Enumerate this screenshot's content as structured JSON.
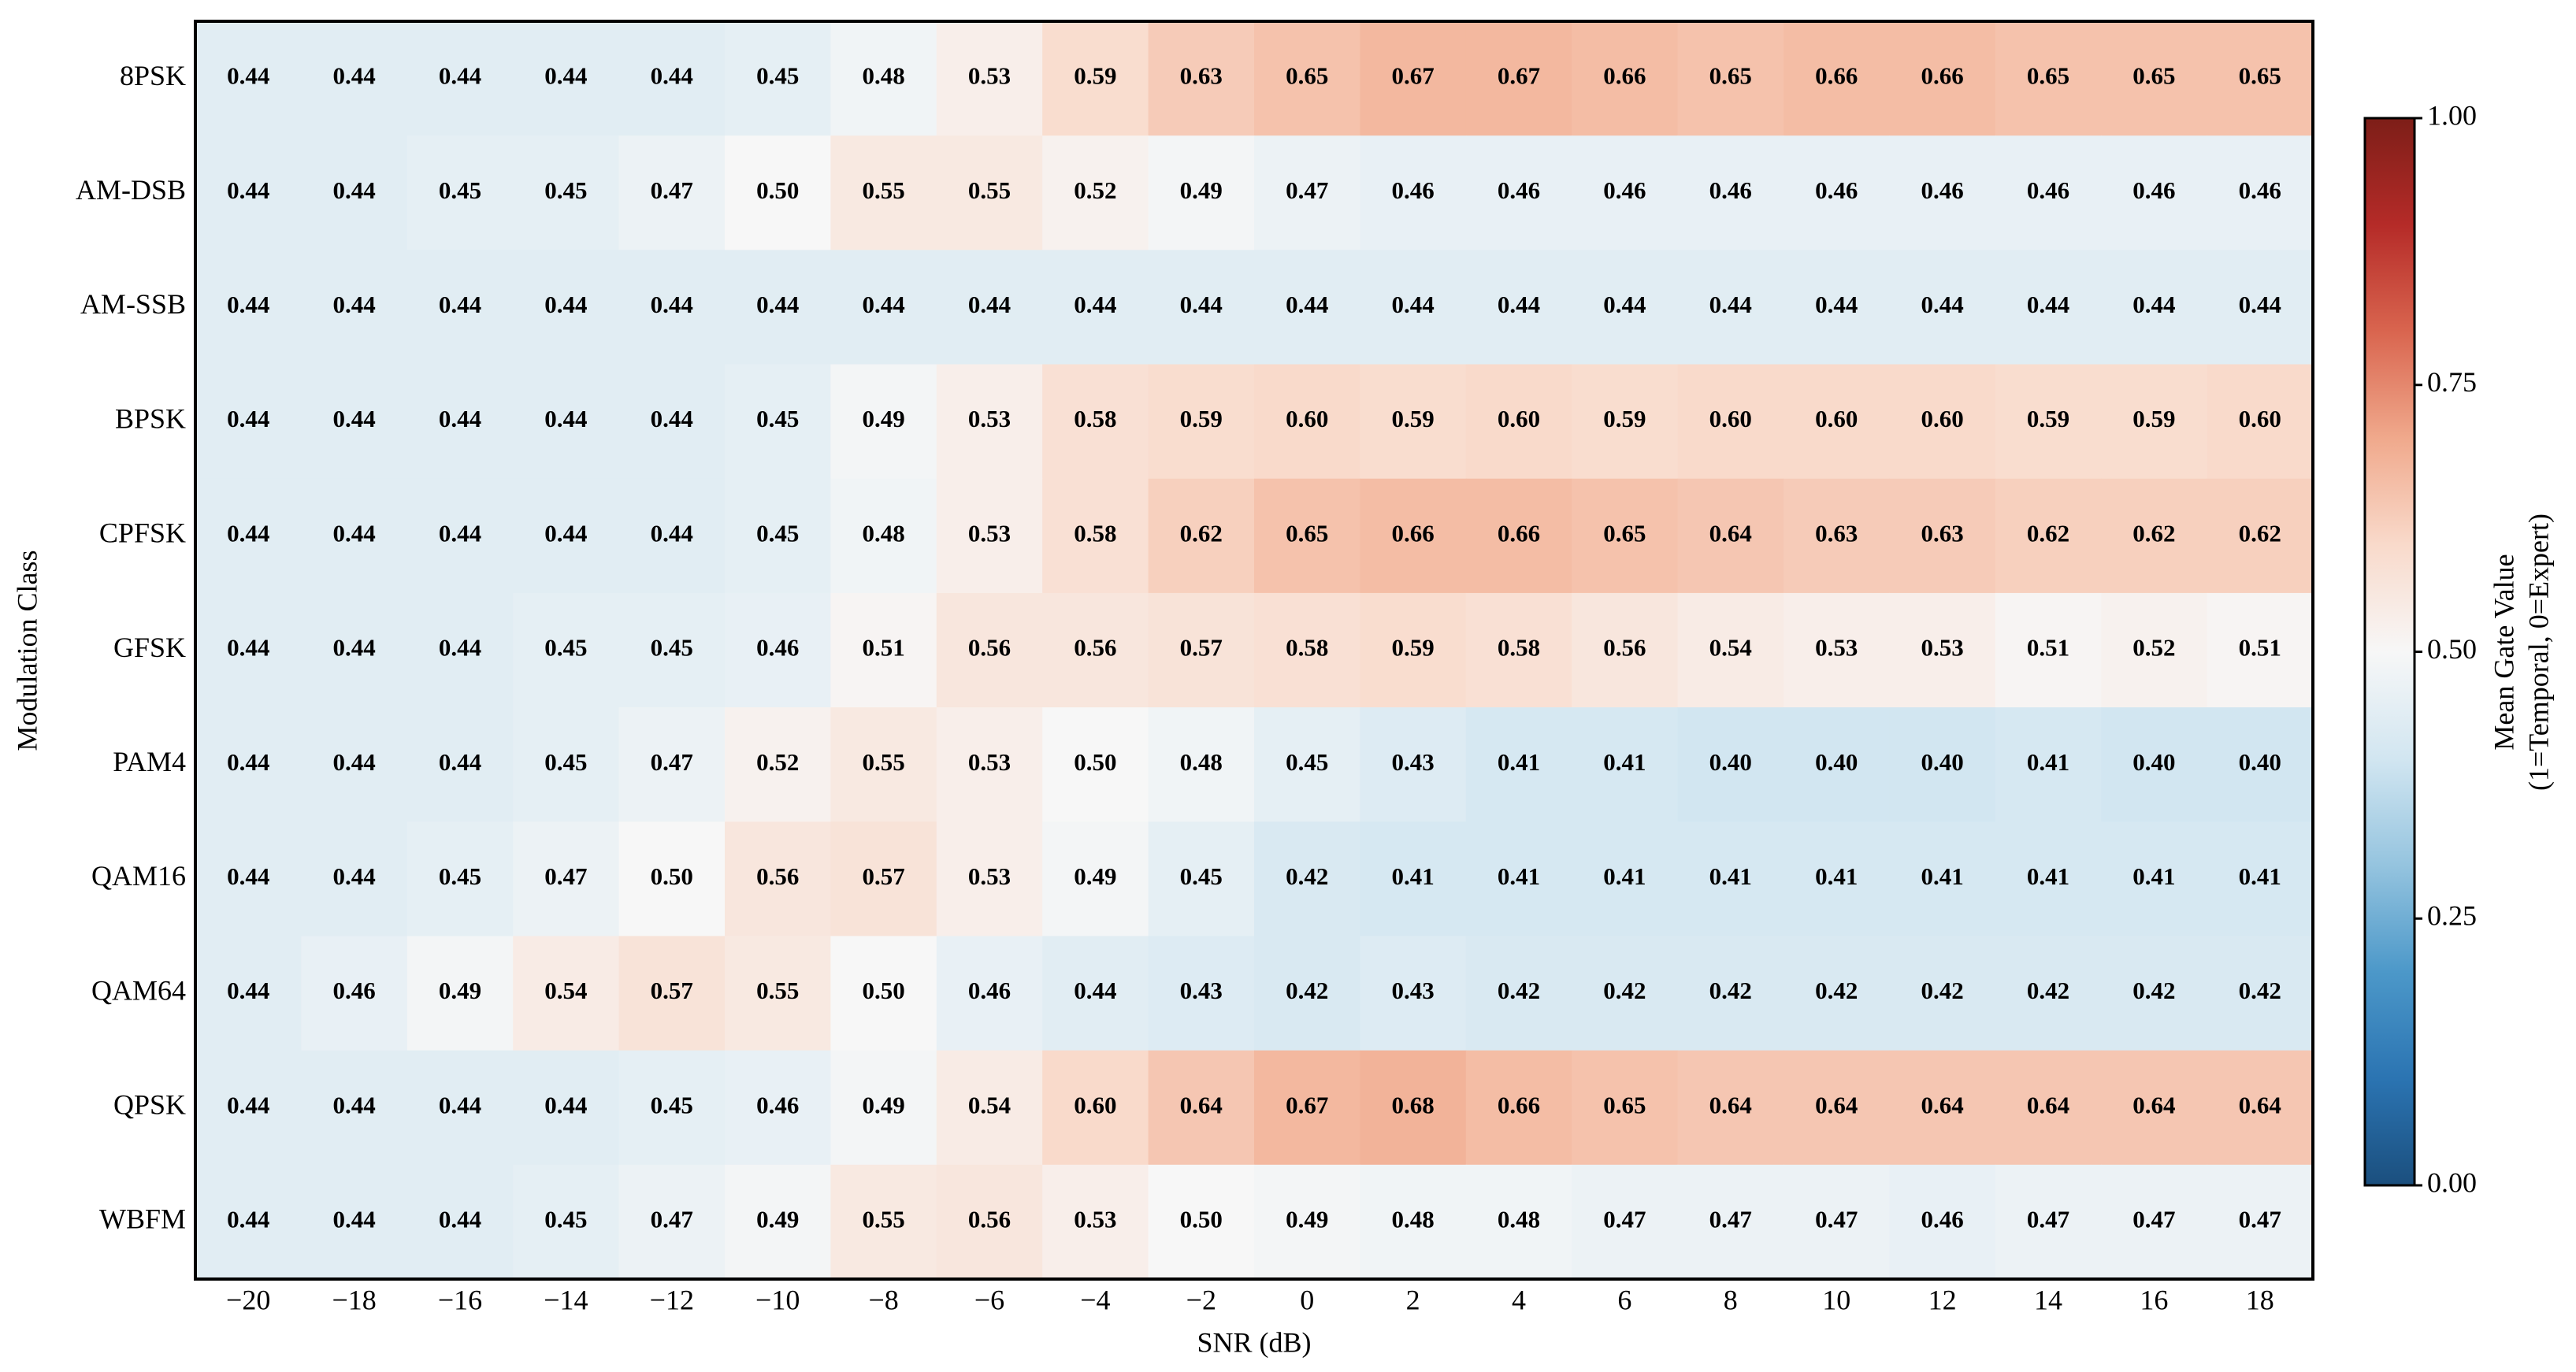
{
  "chart_data": {
    "type": "heatmap",
    "xlabel": "SNR (dB)",
    "ylabel": "Modulation Class",
    "categories": [
      "−20",
      "−18",
      "−16",
      "−14",
      "−12",
      "−10",
      "−8",
      "−6",
      "−4",
      "−2",
      "0",
      "2",
      "4",
      "6",
      "8",
      "10",
      "12",
      "14",
      "16",
      "18"
    ],
    "y_categories": [
      "8PSK",
      "AM-DSB",
      "AM-SSB",
      "BPSK",
      "CPFSK",
      "GFSK",
      "PAM4",
      "QAM16",
      "QAM64",
      "QPSK",
      "WBFM"
    ],
    "values": [
      [
        0.44,
        0.44,
        0.44,
        0.44,
        0.44,
        0.45,
        0.48,
        0.53,
        0.59,
        0.63,
        0.65,
        0.67,
        0.67,
        0.66,
        0.65,
        0.66,
        0.66,
        0.65,
        0.65,
        0.65
      ],
      [
        0.44,
        0.44,
        0.45,
        0.45,
        0.47,
        0.5,
        0.55,
        0.55,
        0.52,
        0.49,
        0.47,
        0.46,
        0.46,
        0.46,
        0.46,
        0.46,
        0.46,
        0.46,
        0.46,
        0.46
      ],
      [
        0.44,
        0.44,
        0.44,
        0.44,
        0.44,
        0.44,
        0.44,
        0.44,
        0.44,
        0.44,
        0.44,
        0.44,
        0.44,
        0.44,
        0.44,
        0.44,
        0.44,
        0.44,
        0.44,
        0.44
      ],
      [
        0.44,
        0.44,
        0.44,
        0.44,
        0.44,
        0.45,
        0.49,
        0.53,
        0.58,
        0.59,
        0.6,
        0.59,
        0.6,
        0.59,
        0.6,
        0.6,
        0.6,
        0.59,
        0.59,
        0.6
      ],
      [
        0.44,
        0.44,
        0.44,
        0.44,
        0.44,
        0.45,
        0.48,
        0.53,
        0.58,
        0.62,
        0.65,
        0.66,
        0.66,
        0.65,
        0.64,
        0.63,
        0.63,
        0.62,
        0.62,
        0.62
      ],
      [
        0.44,
        0.44,
        0.44,
        0.45,
        0.45,
        0.46,
        0.51,
        0.56,
        0.56,
        0.57,
        0.58,
        0.59,
        0.58,
        0.56,
        0.54,
        0.53,
        0.53,
        0.51,
        0.52,
        0.51
      ],
      [
        0.44,
        0.44,
        0.44,
        0.45,
        0.47,
        0.52,
        0.55,
        0.53,
        0.5,
        0.48,
        0.45,
        0.43,
        0.41,
        0.41,
        0.4,
        0.4,
        0.4,
        0.41,
        0.4,
        0.4
      ],
      [
        0.44,
        0.44,
        0.45,
        0.47,
        0.5,
        0.56,
        0.57,
        0.53,
        0.49,
        0.45,
        0.42,
        0.41,
        0.41,
        0.41,
        0.41,
        0.41,
        0.41,
        0.41,
        0.41,
        0.41
      ],
      [
        0.44,
        0.46,
        0.49,
        0.54,
        0.57,
        0.55,
        0.5,
        0.46,
        0.44,
        0.43,
        0.42,
        0.43,
        0.42,
        0.42,
        0.42,
        0.42,
        0.42,
        0.42,
        0.42,
        0.42
      ],
      [
        0.44,
        0.44,
        0.44,
        0.44,
        0.45,
        0.46,
        0.49,
        0.54,
        0.6,
        0.64,
        0.67,
        0.68,
        0.66,
        0.65,
        0.64,
        0.64,
        0.64,
        0.64,
        0.64,
        0.64
      ],
      [
        0.44,
        0.44,
        0.44,
        0.45,
        0.47,
        0.49,
        0.55,
        0.56,
        0.53,
        0.5,
        0.49,
        0.48,
        0.48,
        0.47,
        0.47,
        0.47,
        0.46,
        0.47,
        0.47,
        0.47
      ]
    ],
    "value_labels": [
      [
        "0.44",
        "0.44",
        "0.44",
        "0.44",
        "0.44",
        "0.45",
        "0.48",
        "0.53",
        "0.59",
        "0.63",
        "0.65",
        "0.67",
        "0.67",
        "0.66",
        "0.65",
        "0.66",
        "0.66",
        "0.65",
        "0.65",
        "0.65"
      ],
      [
        "0.44",
        "0.44",
        "0.45",
        "0.45",
        "0.47",
        "0.50",
        "0.55",
        "0.55",
        "0.52",
        "0.49",
        "0.47",
        "0.46",
        "0.46",
        "0.46",
        "0.46",
        "0.46",
        "0.46",
        "0.46",
        "0.46",
        "0.46"
      ],
      [
        "0.44",
        "0.44",
        "0.44",
        "0.44",
        "0.44",
        "0.44",
        "0.44",
        "0.44",
        "0.44",
        "0.44",
        "0.44",
        "0.44",
        "0.44",
        "0.44",
        "0.44",
        "0.44",
        "0.44",
        "0.44",
        "0.44",
        "0.44"
      ],
      [
        "0.44",
        "0.44",
        "0.44",
        "0.44",
        "0.44",
        "0.45",
        "0.49",
        "0.53",
        "0.58",
        "0.59",
        "0.60",
        "0.59",
        "0.60",
        "0.59",
        "0.60",
        "0.60",
        "0.60",
        "0.59",
        "0.59",
        "0.60"
      ],
      [
        "0.44",
        "0.44",
        "0.44",
        "0.44",
        "0.44",
        "0.45",
        "0.48",
        "0.53",
        "0.58",
        "0.62",
        "0.65",
        "0.66",
        "0.66",
        "0.65",
        "0.64",
        "0.63",
        "0.63",
        "0.62",
        "0.62",
        "0.62"
      ],
      [
        "0.44",
        "0.44",
        "0.44",
        "0.45",
        "0.45",
        "0.46",
        "0.51",
        "0.56",
        "0.56",
        "0.57",
        "0.58",
        "0.59",
        "0.58",
        "0.56",
        "0.54",
        "0.53",
        "0.53",
        "0.51",
        "0.52",
        "0.51"
      ],
      [
        "0.44",
        "0.44",
        "0.44",
        "0.45",
        "0.47",
        "0.52",
        "0.55",
        "0.53",
        "0.50",
        "0.48",
        "0.45",
        "0.43",
        "0.41",
        "0.41",
        "0.40",
        "0.40",
        "0.40",
        "0.41",
        "0.40",
        "0.40"
      ],
      [
        "0.44",
        "0.44",
        "0.45",
        "0.47",
        "0.50",
        "0.56",
        "0.57",
        "0.53",
        "0.49",
        "0.45",
        "0.42",
        "0.41",
        "0.41",
        "0.41",
        "0.41",
        "0.41",
        "0.41",
        "0.41",
        "0.41",
        "0.41"
      ],
      [
        "0.44",
        "0.46",
        "0.49",
        "0.54",
        "0.57",
        "0.55",
        "0.50",
        "0.46",
        "0.44",
        "0.43",
        "0.42",
        "0.43",
        "0.42",
        "0.42",
        "0.42",
        "0.42",
        "0.42",
        "0.42",
        "0.42",
        "0.42"
      ],
      [
        "0.44",
        "0.44",
        "0.44",
        "0.44",
        "0.45",
        "0.46",
        "0.49",
        "0.54",
        "0.60",
        "0.64",
        "0.67",
        "0.68",
        "0.66",
        "0.65",
        "0.64",
        "0.64",
        "0.64",
        "0.64",
        "0.64",
        "0.64"
      ],
      [
        "0.44",
        "0.44",
        "0.44",
        "0.45",
        "0.47",
        "0.49",
        "0.55",
        "0.56",
        "0.53",
        "0.50",
        "0.49",
        "0.48",
        "0.48",
        "0.47",
        "0.47",
        "0.47",
        "0.46",
        "0.47",
        "0.47",
        "0.47"
      ]
    ],
    "colorbar": {
      "label": [
        "Mean Gate Value",
        "(1=Temporal, 0=Expert)"
      ],
      "lim": [
        0,
        1
      ],
      "ticks": [
        {
          "value": 0,
          "label": "0.00"
        },
        {
          "value": 0.25,
          "label": "0.25"
        },
        {
          "value": 0.5,
          "label": "0.50"
        },
        {
          "value": 0.75,
          "label": "0.75"
        },
        {
          "value": 1,
          "label": "1.00"
        }
      ],
      "colors": [
        "#1b4f7e",
        "#2b74b2",
        "#4c98c9",
        "#95c4df",
        "#d2e6f1",
        "#f7f7f7",
        "#f9dacb",
        "#f0a98c",
        "#d9654f",
        "#b52b28",
        "#7d1e18"
      ]
    }
  }
}
